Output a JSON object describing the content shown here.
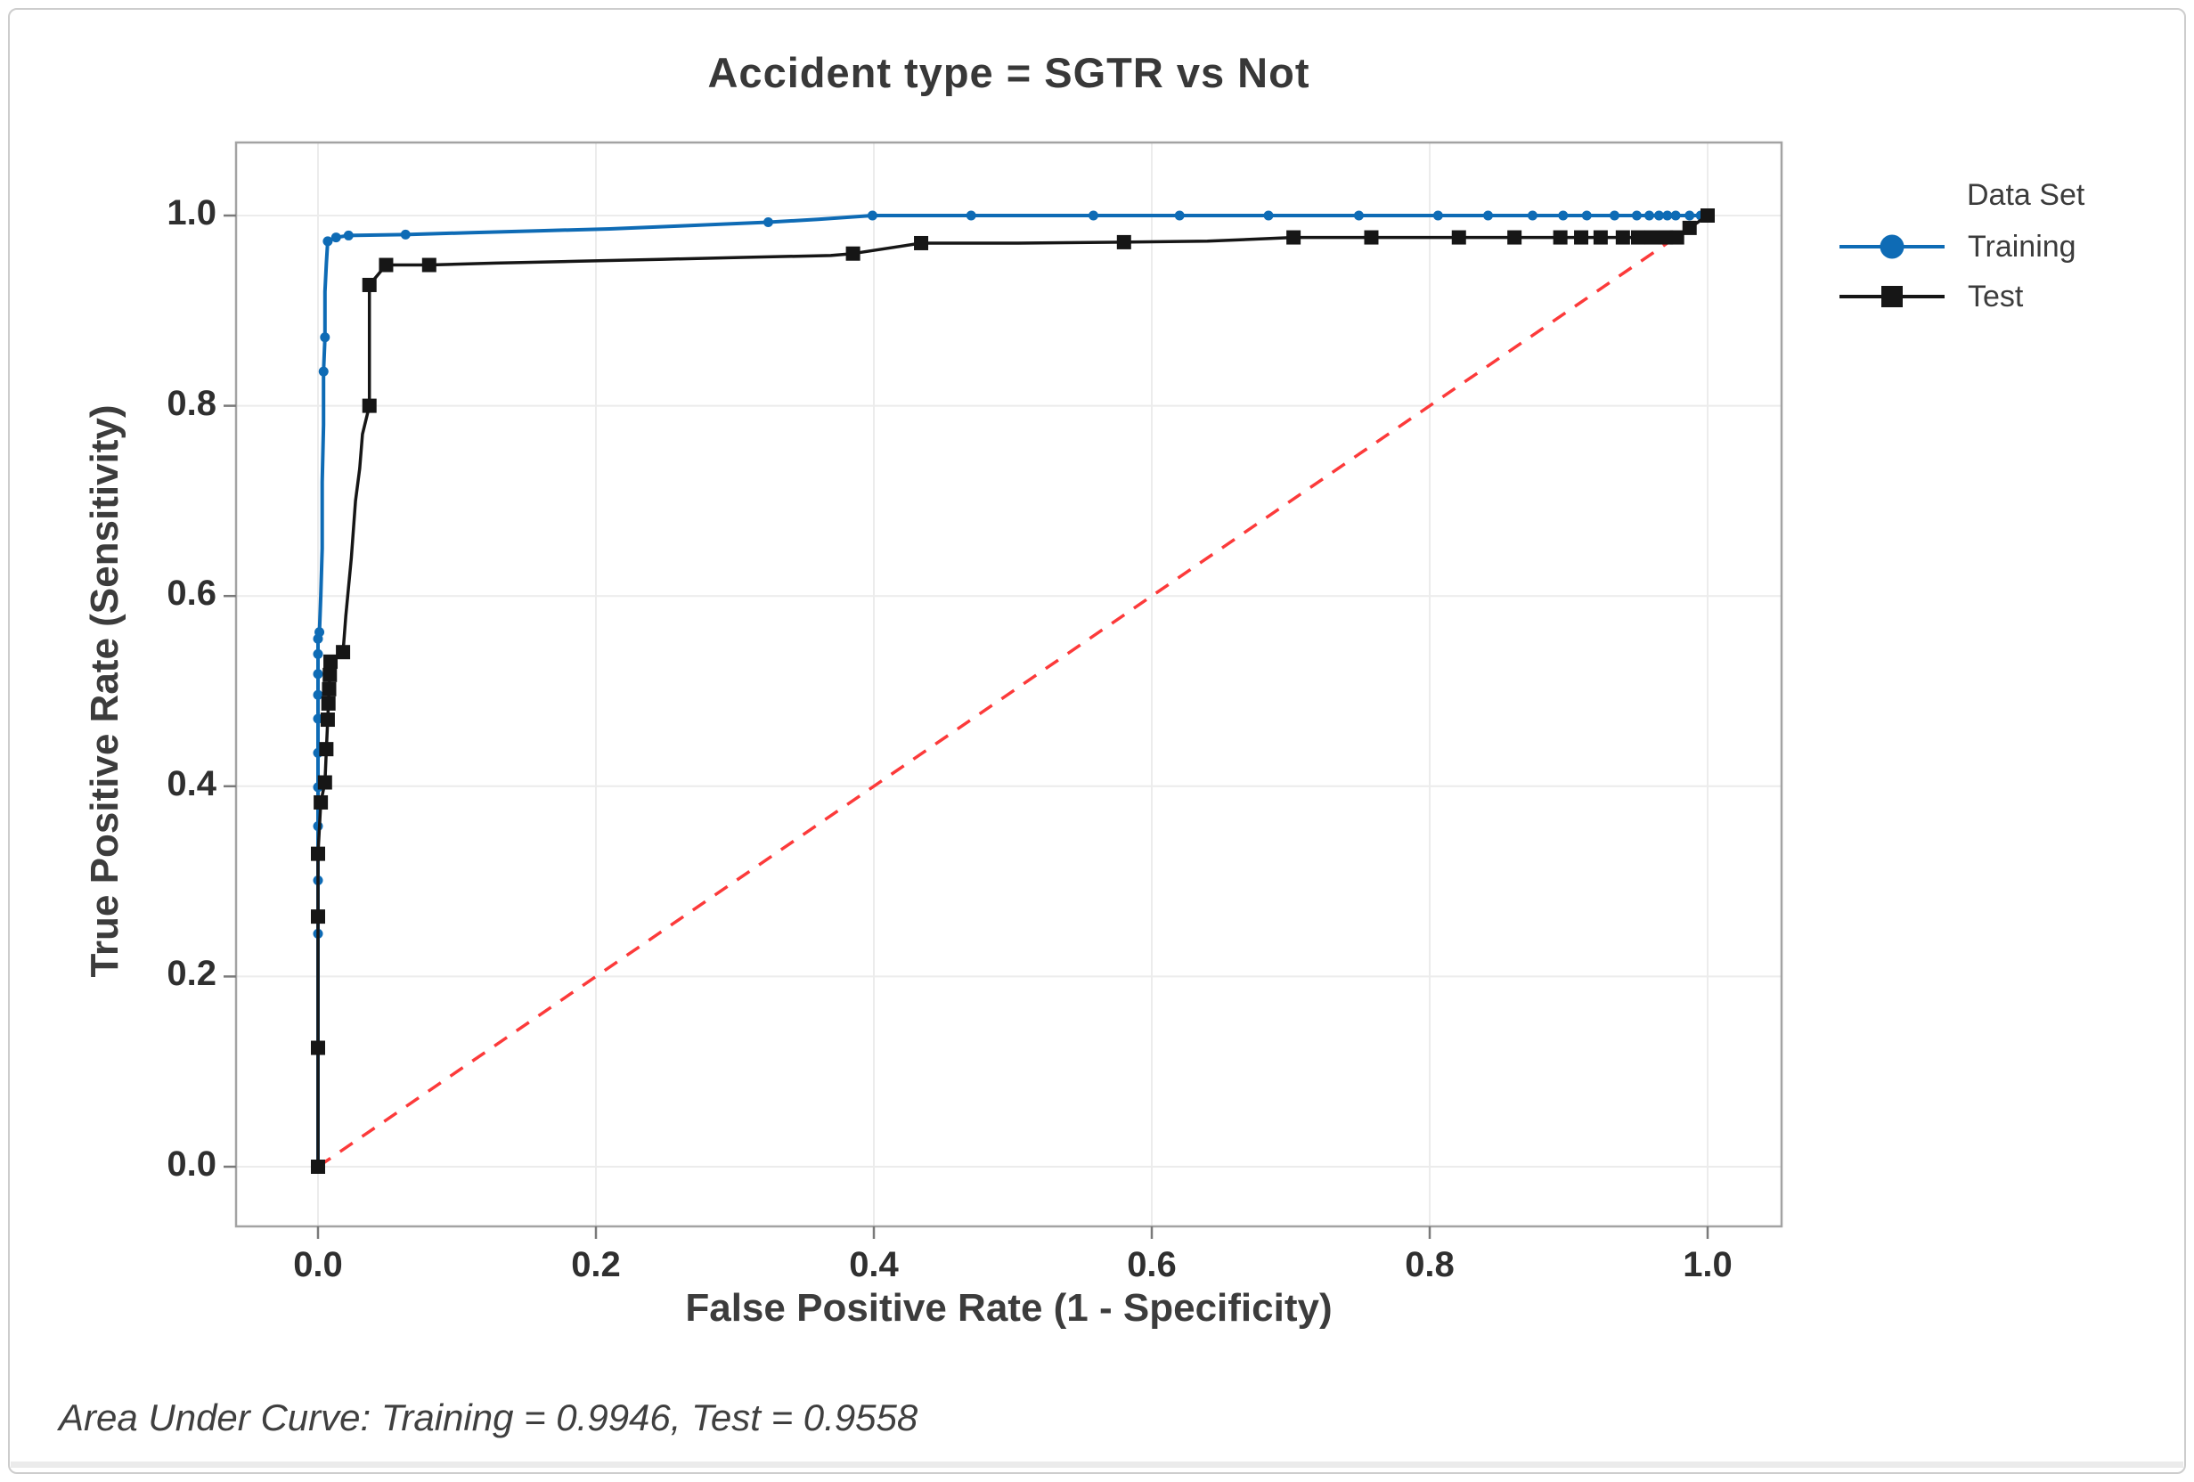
{
  "figure": {
    "title": "Accident type = SGTR vs Not",
    "footer": "Area Under Curve: Training = 0.9946, Test = 0.9558"
  },
  "chart_data": {
    "type": "line",
    "title": "Accident type = SGTR vs Not",
    "xlabel": "False Positive Rate (1 - Specificity)",
    "ylabel": "True Positive Rate (Sensitivity)",
    "xlim": [
      0,
      1
    ],
    "ylim": [
      0,
      1
    ],
    "grid": true,
    "x_ticks": [
      "0.0",
      "0.2",
      "0.4",
      "0.6",
      "0.8",
      "1.0"
    ],
    "y_ticks": [
      "0.0",
      "0.2",
      "0.4",
      "0.6",
      "0.8",
      "1.0"
    ],
    "tick_values": [
      0,
      0.2,
      0.4,
      0.6,
      0.8,
      1.0
    ],
    "legend": {
      "title": "Data Set",
      "position": "right"
    },
    "reference_line": {
      "style": "dashed",
      "color": "#fc3a3a",
      "from": [
        0,
        0
      ],
      "to": [
        1,
        1
      ]
    },
    "area_under_curve": {
      "Training": 0.9946,
      "Test": 0.9558
    },
    "series": [
      {
        "name": "Training",
        "color": "#0e6bb5",
        "marker": "circle",
        "points": [
          [
            0,
            0,
            0
          ],
          [
            0,
            0.125
          ],
          [
            0,
            0.245
          ],
          [
            0,
            0.301
          ],
          [
            0,
            0.358
          ],
          [
            0,
            0.399
          ],
          [
            0,
            0.435
          ],
          [
            0,
            0.471
          ],
          [
            0,
            0.496
          ],
          [
            0,
            0.518
          ],
          [
            0,
            0.539
          ],
          [
            0,
            0.555
          ],
          [
            0.001,
            0.562
          ],
          [
            0.002,
            0.6,
            0
          ],
          [
            0.003,
            0.65,
            0
          ],
          [
            0.003,
            0.72,
            0
          ],
          [
            0.004,
            0.78,
            0
          ],
          [
            0.004,
            0.836
          ],
          [
            0.005,
            0.872
          ],
          [
            0.005,
            0.92,
            0
          ],
          [
            0.006,
            0.95,
            0
          ],
          [
            0.007,
            0.973
          ],
          [
            0.013,
            0.977
          ],
          [
            0.022,
            0.979
          ],
          [
            0.063,
            0.98
          ],
          [
            0.11,
            0.982,
            0
          ],
          [
            0.16,
            0.984,
            0
          ],
          [
            0.21,
            0.986,
            0
          ],
          [
            0.26,
            0.989,
            0
          ],
          [
            0.324,
            0.993
          ],
          [
            0.36,
            0.996,
            0
          ],
          [
            0.399,
            1
          ],
          [
            0.47,
            1
          ],
          [
            0.558,
            1
          ],
          [
            0.62,
            1
          ],
          [
            0.684,
            1
          ],
          [
            0.749,
            1
          ],
          [
            0.806,
            1
          ],
          [
            0.842,
            1
          ],
          [
            0.874,
            1
          ],
          [
            0.896,
            1
          ],
          [
            0.913,
            1
          ],
          [
            0.933,
            1
          ],
          [
            0.949,
            1
          ],
          [
            0.958,
            1
          ],
          [
            0.965,
            1
          ],
          [
            0.971,
            1
          ],
          [
            0.977,
            1
          ],
          [
            0.987,
            1
          ],
          [
            0.995,
            1
          ],
          [
            1,
            1
          ]
        ]
      },
      {
        "name": "Test",
        "color": "#161616",
        "marker": "square",
        "points": [
          [
            0,
            0
          ],
          [
            0,
            0.125
          ],
          [
            0,
            0.263
          ],
          [
            0,
            0.329
          ],
          [
            0.002,
            0.383
          ],
          [
            0.005,
            0.404
          ],
          [
            0.006,
            0.439
          ],
          [
            0.007,
            0.47
          ],
          [
            0.0075,
            0.487
          ],
          [
            0.008,
            0.502
          ],
          [
            0.0085,
            0.517
          ],
          [
            0.009,
            0.531
          ],
          [
            0.018,
            0.541
          ],
          [
            0.02,
            0.579,
            0
          ],
          [
            0.024,
            0.64,
            0
          ],
          [
            0.027,
            0.7,
            0
          ],
          [
            0.03,
            0.734,
            0
          ],
          [
            0.032,
            0.77,
            0
          ],
          [
            0.037,
            0.8
          ],
          [
            0.037,
            0.927
          ],
          [
            0.049,
            0.948
          ],
          [
            0.08,
            0.948
          ],
          [
            0.128,
            0.95,
            0
          ],
          [
            0.188,
            0.952,
            0
          ],
          [
            0.249,
            0.954,
            0
          ],
          [
            0.306,
            0.956,
            0
          ],
          [
            0.369,
            0.958,
            0
          ],
          [
            0.385,
            0.96
          ],
          [
            0.434,
            0.971
          ],
          [
            0.5,
            0.971,
            0
          ],
          [
            0.58,
            0.972
          ],
          [
            0.64,
            0.973,
            0
          ],
          [
            0.702,
            0.977
          ],
          [
            0.758,
            0.977
          ],
          [
            0.821,
            0.977
          ],
          [
            0.861,
            0.977
          ],
          [
            0.894,
            0.977
          ],
          [
            0.909,
            0.977
          ],
          [
            0.923,
            0.977
          ],
          [
            0.939,
            0.977
          ],
          [
            0.95,
            0.977
          ],
          [
            0.96,
            0.977
          ],
          [
            0.97,
            0.977
          ],
          [
            0.978,
            0.977
          ],
          [
            0.987,
            0.987
          ],
          [
            1,
            1
          ]
        ]
      }
    ]
  },
  "colors": {
    "grid": "#ececec",
    "plot_border": "#a3a3a3",
    "tick": "#7a7a7a",
    "training_blue": "#0e6bb5",
    "test_black": "#161616",
    "reference_red": "#fc3a3a"
  }
}
